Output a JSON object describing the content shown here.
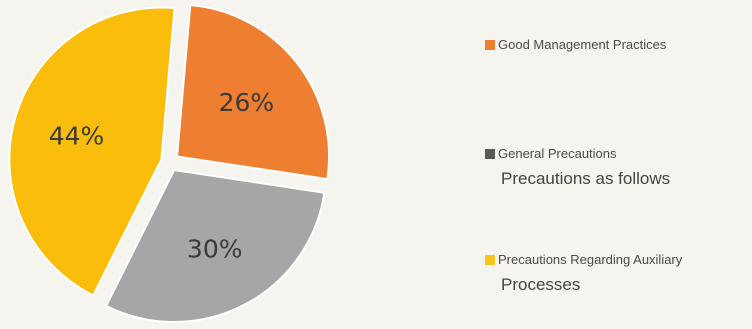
{
  "chart_data": {
    "type": "pie",
    "title": "",
    "slices": [
      {
        "name": "Good Management Practices",
        "value": 26,
        "label": "26%",
        "color": "#ee7f31"
      },
      {
        "name": "General Precautions",
        "value": 30,
        "label": "30%",
        "color": "#a6a6a6"
      },
      {
        "name": "Precautions Regarding Auxiliary",
        "value": 44,
        "label": "44%",
        "color": "#fbbd0c"
      }
    ],
    "legend_position": "right",
    "exploded": true
  },
  "legend": {
    "items": [
      {
        "label": "Good Management Practices",
        "sub": "",
        "color": "#ee7f31"
      },
      {
        "label": "General Precautions",
        "sub": "Precautions as follows",
        "color": "#595959"
      },
      {
        "label": "Precautions Regarding Auxiliary",
        "sub": "Processes",
        "color": "#f7c51b"
      }
    ]
  }
}
